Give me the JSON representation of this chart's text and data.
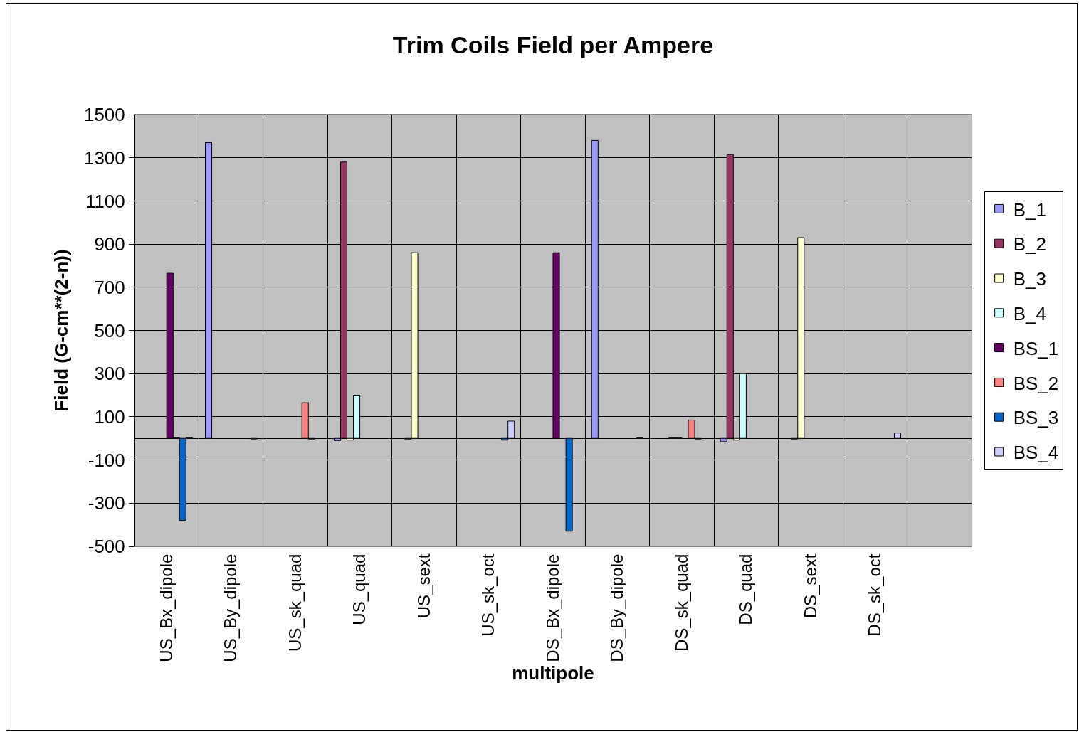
{
  "chart_data": {
    "type": "bar",
    "title": "Trim Coils Field per Ampere",
    "xlabel": "multipole",
    "ylabel": "Field (G-cm**(2-n))",
    "categories": [
      "US_Bx_dipole",
      "US_By_dipole",
      "US_sk_quad",
      "US_quad",
      "US_sext",
      "US_sk_oct",
      "DS_Bx_dipole",
      "DS_By_dipole",
      "DS_sk_quad",
      "DS_quad",
      "DS_sext",
      "DS_sk_oct",
      null
    ],
    "series": [
      {
        "name": "B_1",
        "color": "#9999ff",
        "values": [
          null,
          1370,
          null,
          -10,
          null,
          null,
          null,
          1380,
          null,
          -15,
          null,
          null,
          null
        ]
      },
      {
        "name": "B_2",
        "color": "#993366",
        "values": [
          null,
          null,
          null,
          1280,
          -3,
          null,
          null,
          null,
          null,
          1315,
          -3,
          null,
          null
        ]
      },
      {
        "name": "B_3",
        "color": "#ffffcc",
        "values": [
          null,
          null,
          null,
          -8,
          860,
          null,
          null,
          null,
          3,
          -8,
          930,
          null,
          null
        ]
      },
      {
        "name": "B_4",
        "color": "#ccffff",
        "values": [
          null,
          null,
          null,
          200,
          null,
          null,
          null,
          null,
          3,
          300,
          null,
          null,
          null
        ]
      },
      {
        "name": "BS_1",
        "color": "#660066",
        "values": [
          765,
          null,
          null,
          null,
          null,
          null,
          860,
          null,
          null,
          null,
          null,
          null,
          null
        ]
      },
      {
        "name": "BS_2",
        "color": "#ff8080",
        "values": [
          3,
          null,
          165,
          null,
          null,
          null,
          null,
          null,
          85,
          null,
          null,
          null,
          null
        ]
      },
      {
        "name": "BS_3",
        "color": "#0066cc",
        "values": [
          -380,
          null,
          -3,
          null,
          null,
          -8,
          -430,
          null,
          -3,
          null,
          null,
          null,
          null
        ]
      },
      {
        "name": "BS_4",
        "color": "#ccccff",
        "values": [
          3,
          -3,
          null,
          null,
          null,
          80,
          null,
          3,
          null,
          null,
          null,
          25,
          null
        ]
      }
    ],
    "ylim": [
      -500,
      1500
    ],
    "yticks": [
      -500,
      -300,
      -100,
      100,
      300,
      500,
      700,
      900,
      1100,
      1300,
      1500
    ],
    "grid": true,
    "legend": "right"
  }
}
